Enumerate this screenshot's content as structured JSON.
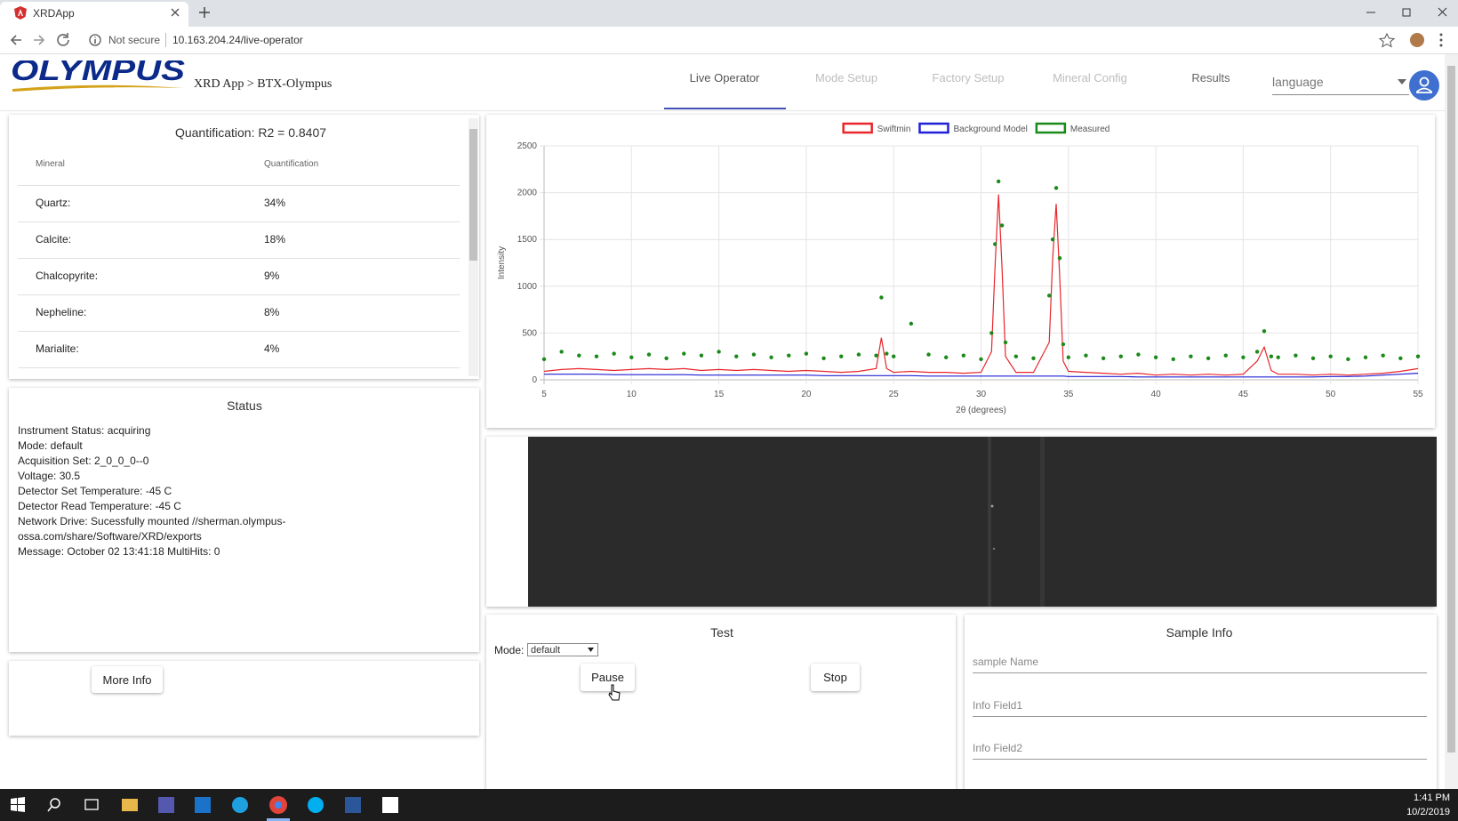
{
  "browser": {
    "tab_title": "XRDApp",
    "security": "Not secure",
    "url": "10.163.204.24/live-operator"
  },
  "header": {
    "logo": "OLYMPUS",
    "breadcrumb": "XRD App > BTX-Olympus",
    "nav": [
      "Live Operator",
      "Mode Setup",
      "Factory Setup",
      "Mineral Config",
      "Results"
    ],
    "language": "language"
  },
  "quantification": {
    "title": "Quantification: R2 = 0.8407",
    "columns": [
      "Mineral",
      "Quantification"
    ],
    "rows": [
      [
        "Quartz:",
        "34%"
      ],
      [
        "Calcite:",
        "18%"
      ],
      [
        "Chalcopyrite:",
        "9%"
      ],
      [
        "Nepheline:",
        "8%"
      ],
      [
        "Marialite:",
        "4%"
      ]
    ]
  },
  "status": {
    "title": "Status",
    "lines": [
      "Instrument Status: acquiring",
      "Mode: default",
      "Acquisition Set: 2_0_0_0--0",
      "Voltage: 30.5",
      "Detector Set Temperature: -45 C",
      "Detector Read Temperature: -45 C",
      "Network Drive: Sucessfully mounted //sherman.olympus-ossa.com/share/Software/XRD/exports",
      "Message: October 02 13:41:18 MultiHits: 0"
    ]
  },
  "more_info": "More Info",
  "chart_data": {
    "type": "line",
    "xlabel": "2θ (degrees)",
    "ylabel": "Intensity",
    "xlim": [
      5,
      55
    ],
    "xticks": [
      5,
      10,
      15,
      20,
      25,
      30,
      35,
      40,
      45,
      50,
      55
    ],
    "ylim": [
      0,
      2500
    ],
    "yticks": [
      0,
      500,
      1000,
      1500,
      2000,
      2500
    ],
    "grid": true,
    "x": [
      5,
      6,
      7,
      8,
      9,
      10,
      11,
      12,
      13,
      14,
      15,
      16,
      17,
      18,
      19,
      20,
      21,
      22,
      23,
      24,
      24.3,
      24.6,
      25,
      26,
      27,
      28,
      29,
      30,
      30.6,
      30.8,
      31.0,
      31.2,
      31.4,
      32,
      33,
      33.9,
      34.1,
      34.3,
      34.5,
      34.7,
      35,
      36,
      37,
      38,
      39,
      40,
      41,
      42,
      43,
      44,
      45,
      45.8,
      46.2,
      46.6,
      47,
      48,
      49,
      50,
      51,
      52,
      53,
      54,
      55
    ],
    "series": [
      {
        "name": "Swiftmin",
        "color": "#e8262b",
        "style": "line",
        "values": [
          90,
          110,
          120,
          110,
          100,
          110,
          120,
          110,
          120,
          100,
          110,
          100,
          110,
          100,
          90,
          100,
          90,
          80,
          90,
          120,
          450,
          120,
          80,
          90,
          80,
          80,
          70,
          80,
          300,
          1200,
          1980,
          1200,
          250,
          80,
          80,
          400,
          1300,
          1880,
          1100,
          200,
          90,
          80,
          70,
          60,
          70,
          50,
          60,
          50,
          60,
          50,
          60,
          200,
          350,
          100,
          60,
          60,
          50,
          60,
          50,
          60,
          70,
          90,
          120
        ]
      },
      {
        "name": "Background Model",
        "color": "#1f1fd6",
        "style": "line",
        "values": [
          60,
          60,
          60,
          60,
          55,
          55,
          55,
          55,
          55,
          50,
          50,
          50,
          50,
          50,
          50,
          50,
          45,
          45,
          45,
          45,
          45,
          45,
          45,
          45,
          40,
          40,
          40,
          40,
          40,
          40,
          40,
          40,
          40,
          40,
          40,
          40,
          40,
          40,
          40,
          40,
          35,
          35,
          35,
          35,
          30,
          30,
          30,
          30,
          30,
          30,
          30,
          30,
          30,
          30,
          30,
          30,
          30,
          35,
          35,
          40,
          50,
          60,
          70
        ]
      },
      {
        "name": "Measured",
        "color": "#1a8a1a",
        "style": "points",
        "values": [
          220,
          300,
          260,
          250,
          280,
          240,
          270,
          230,
          280,
          260,
          300,
          250,
          270,
          240,
          260,
          280,
          230,
          250,
          270,
          260,
          880,
          280,
          250,
          600,
          270,
          240,
          260,
          220,
          500,
          1450,
          2120,
          1650,
          400,
          250,
          230,
          900,
          1500,
          2050,
          1300,
          380,
          240,
          260,
          230,
          250,
          270,
          240,
          220,
          250,
          230,
          260,
          240,
          300,
          520,
          250,
          240,
          260,
          230,
          250,
          220,
          240,
          260,
          230,
          250
        ]
      }
    ]
  },
  "test": {
    "title": "Test",
    "mode_label": "Mode:",
    "mode": "default",
    "buttons": [
      "Pause",
      "Stop"
    ]
  },
  "sample_info": {
    "title": "Sample Info",
    "fields": [
      "sample Name",
      "Info Field1",
      "Info Field2"
    ]
  },
  "taskbar": {
    "time": "1:41 PM",
    "date": "10/2/2019"
  }
}
